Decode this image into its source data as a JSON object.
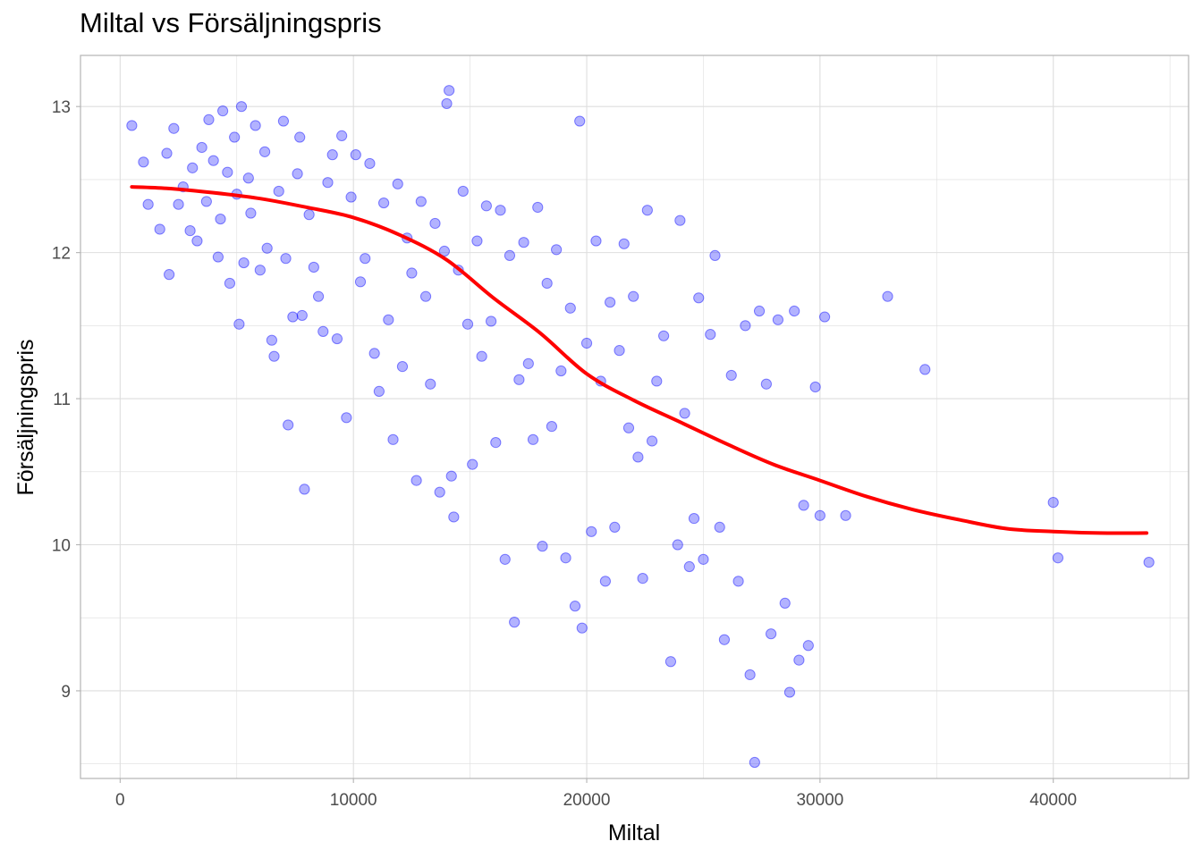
{
  "chart_data": {
    "type": "scatter",
    "title": "Miltal vs Försäljningspris",
    "xlabel": "Miltal",
    "ylabel": "Försäljningspris",
    "xlim": [
      -1700,
      45800
    ],
    "ylim": [
      8.4,
      13.35
    ],
    "x_ticks": [
      0,
      10000,
      20000,
      30000,
      40000
    ],
    "x_tick_labels": [
      "0",
      "10000",
      "20000",
      "30000",
      "40000"
    ],
    "y_ticks": [
      9,
      10,
      11,
      12,
      13
    ],
    "y_tick_labels": [
      "9",
      "10",
      "11",
      "12",
      "13"
    ],
    "grid": true,
    "colors": {
      "points": "#0000ff",
      "smooth_line": "#ff0000",
      "grid": "#dedede",
      "panel_border": "#b3b3b3"
    },
    "series": [
      {
        "kind": "points",
        "points": [
          [
            500,
            12.87
          ],
          [
            1000,
            12.62
          ],
          [
            1200,
            12.33
          ],
          [
            1700,
            12.16
          ],
          [
            2000,
            12.68
          ],
          [
            2100,
            11.85
          ],
          [
            2300,
            12.85
          ],
          [
            2500,
            12.33
          ],
          [
            2700,
            12.45
          ],
          [
            3000,
            12.15
          ],
          [
            3100,
            12.58
          ],
          [
            3300,
            12.08
          ],
          [
            3500,
            12.72
          ],
          [
            3700,
            12.35
          ],
          [
            3800,
            12.91
          ],
          [
            4000,
            12.63
          ],
          [
            4200,
            11.97
          ],
          [
            4300,
            12.23
          ],
          [
            4400,
            12.97
          ],
          [
            4600,
            12.55
          ],
          [
            4700,
            11.79
          ],
          [
            4900,
            12.79
          ],
          [
            5000,
            12.4
          ],
          [
            5100,
            11.51
          ],
          [
            5200,
            13.0
          ],
          [
            5300,
            11.93
          ],
          [
            5500,
            12.51
          ],
          [
            5600,
            12.27
          ],
          [
            5800,
            12.87
          ],
          [
            6000,
            11.88
          ],
          [
            6200,
            12.69
          ],
          [
            6300,
            12.03
          ],
          [
            6500,
            11.4
          ],
          [
            6600,
            11.29
          ],
          [
            6800,
            12.42
          ],
          [
            7000,
            12.9
          ],
          [
            7100,
            11.96
          ],
          [
            7200,
            10.82
          ],
          [
            7400,
            11.56
          ],
          [
            7600,
            12.54
          ],
          [
            7700,
            12.79
          ],
          [
            7800,
            11.57
          ],
          [
            7900,
            10.38
          ],
          [
            8100,
            12.26
          ],
          [
            8300,
            11.9
          ],
          [
            8500,
            11.7
          ],
          [
            8700,
            11.46
          ],
          [
            8900,
            12.48
          ],
          [
            9100,
            12.67
          ],
          [
            9300,
            11.41
          ],
          [
            9500,
            12.8
          ],
          [
            9700,
            10.87
          ],
          [
            9900,
            12.38
          ],
          [
            10100,
            12.67
          ],
          [
            10300,
            11.8
          ],
          [
            10500,
            11.96
          ],
          [
            10700,
            12.61
          ],
          [
            10900,
            11.31
          ],
          [
            11100,
            11.05
          ],
          [
            11300,
            12.34
          ],
          [
            11500,
            11.54
          ],
          [
            11700,
            10.72
          ],
          [
            11900,
            12.47
          ],
          [
            12100,
            11.22
          ],
          [
            12300,
            12.1
          ],
          [
            12500,
            11.86
          ],
          [
            12700,
            10.44
          ],
          [
            12900,
            12.35
          ],
          [
            13100,
            11.7
          ],
          [
            13300,
            11.1
          ],
          [
            13500,
            12.2
          ],
          [
            13700,
            10.36
          ],
          [
            13900,
            12.01
          ],
          [
            14000,
            13.02
          ],
          [
            14100,
            13.11
          ],
          [
            14200,
            10.47
          ],
          [
            14300,
            10.19
          ],
          [
            14500,
            11.88
          ],
          [
            14700,
            12.42
          ],
          [
            14900,
            11.51
          ],
          [
            15100,
            10.55
          ],
          [
            15300,
            12.08
          ],
          [
            15500,
            11.29
          ],
          [
            15700,
            12.32
          ],
          [
            15900,
            11.53
          ],
          [
            16100,
            10.7
          ],
          [
            16300,
            12.29
          ],
          [
            16500,
            9.9
          ],
          [
            16700,
            11.98
          ],
          [
            16900,
            9.47
          ],
          [
            17100,
            11.13
          ],
          [
            17300,
            12.07
          ],
          [
            17500,
            11.24
          ],
          [
            17700,
            10.72
          ],
          [
            17900,
            12.31
          ],
          [
            18100,
            9.99
          ],
          [
            18300,
            11.79
          ],
          [
            18500,
            10.81
          ],
          [
            18700,
            12.02
          ],
          [
            18900,
            11.19
          ],
          [
            19100,
            9.91
          ],
          [
            19300,
            11.62
          ],
          [
            19500,
            9.58
          ],
          [
            19700,
            12.9
          ],
          [
            19800,
            9.43
          ],
          [
            20000,
            11.38
          ],
          [
            20200,
            10.09
          ],
          [
            20400,
            12.08
          ],
          [
            20600,
            11.12
          ],
          [
            20800,
            9.75
          ],
          [
            21000,
            11.66
          ],
          [
            21200,
            10.12
          ],
          [
            21400,
            11.33
          ],
          [
            21600,
            12.06
          ],
          [
            21800,
            10.8
          ],
          [
            22000,
            11.7
          ],
          [
            22200,
            10.6
          ],
          [
            22400,
            9.77
          ],
          [
            22600,
            12.29
          ],
          [
            22800,
            10.71
          ],
          [
            23000,
            11.12
          ],
          [
            23300,
            11.43
          ],
          [
            23600,
            9.2
          ],
          [
            23900,
            10.0
          ],
          [
            24000,
            12.22
          ],
          [
            24200,
            10.9
          ],
          [
            24400,
            9.85
          ],
          [
            24600,
            10.18
          ],
          [
            24800,
            11.69
          ],
          [
            25000,
            9.9
          ],
          [
            25300,
            11.44
          ],
          [
            25500,
            11.98
          ],
          [
            25700,
            10.12
          ],
          [
            25900,
            9.35
          ],
          [
            26200,
            11.16
          ],
          [
            26500,
            9.75
          ],
          [
            26800,
            11.5
          ],
          [
            27000,
            9.11
          ],
          [
            27200,
            8.51
          ],
          [
            27400,
            11.6
          ],
          [
            27700,
            11.1
          ],
          [
            27900,
            9.39
          ],
          [
            28200,
            11.54
          ],
          [
            28500,
            9.6
          ],
          [
            28700,
            8.99
          ],
          [
            28900,
            11.6
          ],
          [
            29100,
            9.21
          ],
          [
            29300,
            10.27
          ],
          [
            29500,
            9.31
          ],
          [
            29800,
            11.08
          ],
          [
            30000,
            10.2
          ],
          [
            30200,
            11.56
          ],
          [
            31100,
            10.2
          ],
          [
            32900,
            11.7
          ],
          [
            34500,
            11.2
          ],
          [
            40000,
            10.29
          ],
          [
            40200,
            9.91
          ],
          [
            44100,
            9.88
          ]
        ]
      },
      {
        "kind": "smooth",
        "points": [
          [
            500,
            12.45
          ],
          [
            2000,
            12.44
          ],
          [
            4000,
            12.41
          ],
          [
            6000,
            12.37
          ],
          [
            8000,
            12.31
          ],
          [
            10000,
            12.24
          ],
          [
            12000,
            12.12
          ],
          [
            14000,
            11.95
          ],
          [
            16000,
            11.69
          ],
          [
            18000,
            11.45
          ],
          [
            20000,
            11.17
          ],
          [
            22000,
            10.99
          ],
          [
            24000,
            10.84
          ],
          [
            26000,
            10.69
          ],
          [
            28000,
            10.55
          ],
          [
            30000,
            10.44
          ],
          [
            32000,
            10.33
          ],
          [
            34000,
            10.24
          ],
          [
            36000,
            10.17
          ],
          [
            38000,
            10.11
          ],
          [
            40000,
            10.09
          ],
          [
            42000,
            10.08
          ],
          [
            44000,
            10.08
          ]
        ]
      }
    ]
  }
}
